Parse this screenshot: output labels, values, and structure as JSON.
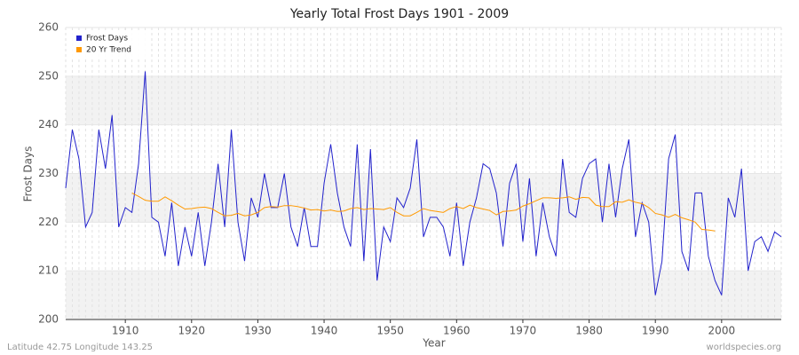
{
  "chart_data": {
    "type": "line",
    "title": "Yearly Total Frost Days 1901 - 2009",
    "x_label": "Year",
    "y_label": "Frost Days",
    "footer_left": "Latitude 42.75 Longitude 143.25",
    "footer_right": "worldspecies.org",
    "legend": "top-left",
    "grid": true,
    "x": [
      1901,
      1902,
      1903,
      1904,
      1905,
      1906,
      1907,
      1908,
      1909,
      1910,
      1911,
      1912,
      1913,
      1914,
      1915,
      1916,
      1917,
      1918,
      1919,
      1920,
      1921,
      1922,
      1923,
      1924,
      1925,
      1926,
      1927,
      1928,
      1929,
      1930,
      1931,
      1932,
      1933,
      1934,
      1935,
      1936,
      1937,
      1938,
      1939,
      1940,
      1941,
      1942,
      1943,
      1944,
      1945,
      1946,
      1947,
      1948,
      1949,
      1950,
      1951,
      1952,
      1953,
      1954,
      1955,
      1956,
      1957,
      1958,
      1959,
      1960,
      1961,
      1962,
      1963,
      1964,
      1965,
      1966,
      1967,
      1968,
      1969,
      1970,
      1971,
      1972,
      1973,
      1974,
      1975,
      1976,
      1977,
      1978,
      1979,
      1980,
      1981,
      1982,
      1983,
      1984,
      1985,
      1986,
      1987,
      1988,
      1989,
      1990,
      1991,
      1992,
      1993,
      1994,
      1995,
      1996,
      1997,
      1998,
      1999,
      2000,
      2001,
      2002,
      2003,
      2004,
      2005,
      2006,
      2007,
      2008,
      2009
    ],
    "series": [
      {
        "name": "Frost Days",
        "color": "#2222cc",
        "values": [
          227,
          239,
          233,
          219,
          222,
          239,
          231,
          242,
          219,
          223,
          222,
          232,
          251,
          221,
          220,
          213,
          224,
          211,
          219,
          213,
          222,
          211,
          220,
          232,
          219,
          239,
          220,
          212,
          225,
          221,
          230,
          223,
          223,
          230,
          219,
          215,
          223,
          215,
          215,
          228,
          236,
          226,
          219,
          215,
          236,
          212,
          235,
          208,
          219,
          216,
          225,
          223,
          227,
          237,
          217,
          221,
          221,
          219,
          213,
          224,
          211,
          220,
          225,
          232,
          231,
          226,
          215,
          228,
          232,
          216,
          229,
          213,
          224,
          217,
          213,
          233,
          222,
          221,
          229,
          232,
          233,
          220,
          232,
          221,
          231,
          237,
          217,
          224,
          220,
          205,
          212,
          233,
          238,
          214,
          210,
          226,
          226,
          213,
          208,
          205,
          225,
          221,
          231,
          210,
          216,
          217,
          214,
          218,
          217
        ]
      },
      {
        "name": "20 Yr Trend",
        "color": "#ff9900",
        "values": [
          null,
          null,
          null,
          null,
          null,
          null,
          null,
          null,
          null,
          null,
          226,
          225.3,
          224.5,
          224.3,
          224.3,
          225.2,
          224.4,
          223.5,
          222.7,
          222.8,
          223,
          223.1,
          222.8,
          222,
          221.3,
          221.4,
          221.8,
          221.3,
          221.5,
          222,
          223,
          223.2,
          223.1,
          223.4,
          223.4,
          223.2,
          222.9,
          222.5,
          222.6,
          222.3,
          222.5,
          222.2,
          222.3,
          222.8,
          223,
          222.6,
          222.8,
          222.7,
          222.6,
          223,
          222,
          221.3,
          221.3,
          222,
          222.8,
          222.4,
          222.2,
          222,
          222.8,
          223.2,
          222.8,
          223.5,
          223,
          222.7,
          222.4,
          221.5,
          222.2,
          222.3,
          222.5,
          223.3,
          223.8,
          224.4,
          225,
          225,
          224.9,
          225,
          225.2,
          224.7,
          225.1,
          225,
          223.5,
          223.2,
          223.2,
          224.2,
          224.1,
          224.6,
          224.1,
          223.8,
          223,
          221.8,
          221.5,
          221,
          221.6,
          220.9,
          220.5,
          220,
          218.5,
          218.4,
          218.2,
          null,
          null,
          null,
          null,
          null,
          null,
          null,
          null,
          null,
          null
        ]
      }
    ],
    "xlim": [
      1901,
      2009
    ],
    "xticks": [
      1910,
      1920,
      1930,
      1940,
      1950,
      1960,
      1970,
      1980,
      1990,
      2000
    ],
    "ylim": [
      200,
      260
    ],
    "yticks": [
      200,
      210,
      220,
      230,
      240,
      250,
      260
    ]
  }
}
